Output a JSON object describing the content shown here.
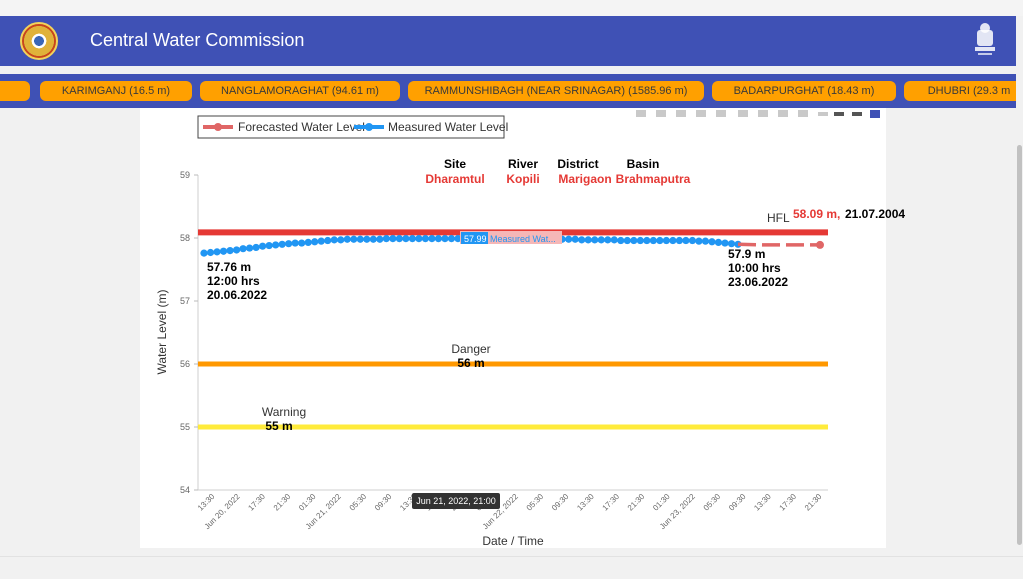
{
  "header": {
    "title": "Central Water Commission",
    "logo_icon": "cwc-logo-icon",
    "emblem_icon": "national-emblem-icon"
  },
  "stations": [
    {
      "label": "KARIMGANJ (16.5 m)"
    },
    {
      "label": "NANGLAMORAGHAT (94.61 m)"
    },
    {
      "label": "RAMMUNSHIBAGH (NEAR SRINAGAR) (1585.96 m)"
    },
    {
      "label": "BADARPURGHAT (18.43 m)"
    },
    {
      "label": "DHUBRI (29.3 m"
    }
  ],
  "colors": {
    "header": "#3f51b5",
    "chip": "#ffa000",
    "forecast": "#e06666",
    "measured": "#2196f3",
    "hfl_line": "#e53935",
    "danger_line": "#ff9800",
    "warning_line": "#ffeb3b",
    "red_text": "#e53935"
  },
  "info": {
    "site_label": "Site",
    "site_value": "Dharamtul",
    "river_label": "River",
    "river_value": "Kopili",
    "district_label": "District",
    "district_value": "Marigaon",
    "basin_label": "Basin",
    "basin_value": "Brahmaputra"
  },
  "chart_data": {
    "type": "line",
    "xlabel": "Date / Time",
    "ylabel": "Water Level (m)",
    "ylim": [
      54,
      59
    ],
    "yticks": [
      "54",
      "55",
      "56",
      "57",
      "58",
      "59"
    ],
    "grid": false,
    "legend_position": "top-left",
    "legend": [
      "Forecasted Water Level",
      "Measured Water Level"
    ],
    "x_ticks": [
      "13:30",
      "Jun 20, 2022",
      "17:30",
      "21:30",
      "01:30",
      "Jun 21, 2022",
      "05:30",
      "09:30",
      "13:30",
      "17:30",
      "21:30",
      "01:30",
      "Jun 22, 2022",
      "05:30",
      "09:30",
      "13:30",
      "17:30",
      "21:30",
      "01:30",
      "Jun 23, 2022",
      "05:30",
      "09:30",
      "13:30",
      "17:30",
      "21:30"
    ],
    "thresholds": {
      "hfl": {
        "value": 58.09,
        "label": "HFL",
        "value_text": "58.09 m,",
        "date_text": "21.07.2004"
      },
      "danger": {
        "value": 56,
        "label": "Danger",
        "value_text": "56 m"
      },
      "warning": {
        "value": 55,
        "label": "Warning",
        "value_text": "55 m"
      }
    },
    "series": [
      {
        "name": "Measured Water Level",
        "values": [
          57.76,
          57.77,
          57.78,
          57.79,
          57.8,
          57.81,
          57.83,
          57.84,
          57.85,
          57.87,
          57.88,
          57.89,
          57.9,
          57.91,
          57.92,
          57.92,
          57.93,
          57.94,
          57.95,
          57.96,
          57.97,
          57.97,
          57.98,
          57.98,
          57.98,
          57.98,
          57.98,
          57.98,
          57.99,
          57.99,
          57.99,
          57.99,
          57.99,
          57.99,
          57.99,
          57.99,
          57.99,
          57.99,
          57.99,
          57.99,
          57.99,
          57.99,
          57.99,
          57.99,
          57.99,
          57.99,
          57.99,
          57.99,
          57.99,
          57.99,
          57.99,
          57.99,
          57.99,
          57.99,
          57.99,
          57.98,
          57.98,
          57.98,
          57.97,
          57.97,
          57.97,
          57.97,
          57.97,
          57.97,
          57.96,
          57.96,
          57.96,
          57.96,
          57.96,
          57.96,
          57.96,
          57.96,
          57.96,
          57.96,
          57.96,
          57.96,
          57.95,
          57.95,
          57.94,
          57.93,
          57.92,
          57.91,
          57.9
        ]
      },
      {
        "name": "Forecasted Water Level",
        "values": [
          57.9,
          57.89,
          57.89,
          57.89
        ]
      }
    ],
    "annotations": {
      "start": {
        "value": "57.76 m",
        "time": "12:00 hrs",
        "date": "20.06.2022"
      },
      "end": {
        "value": "57.9 m",
        "time": "10:00 hrs",
        "date": "23.06.2022"
      },
      "tooltip_value": "57.99",
      "tooltip_series": "Measured Wat...",
      "tooltip_date": "Jun 21, 2022, 21:00"
    }
  }
}
